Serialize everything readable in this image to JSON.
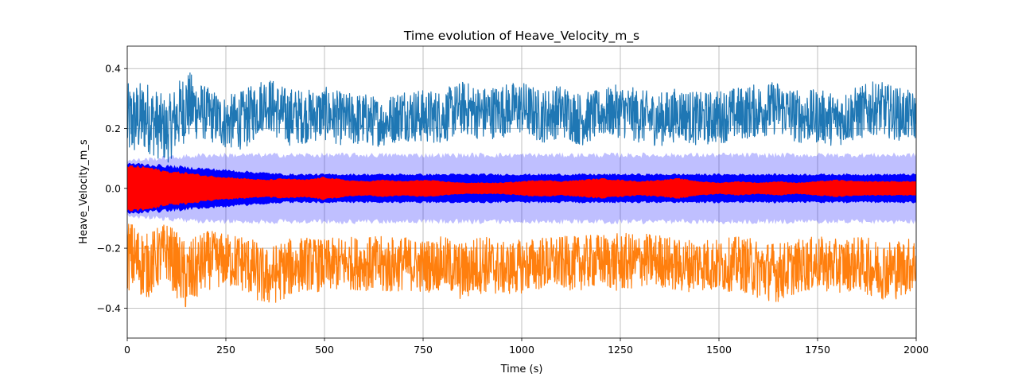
{
  "chart_data": {
    "type": "line",
    "title": "Time evolution of Heave_Velocity_m_s",
    "xlabel": "Time (s)",
    "ylabel": "Heave_Velocity_m_s",
    "xlim": [
      0,
      2000
    ],
    "ylim": [
      -0.5,
      0.475
    ],
    "x_ticks": [
      0,
      250,
      500,
      750,
      1000,
      1250,
      1500,
      1750,
      2000
    ],
    "x_tick_labels": [
      "0",
      "250",
      "500",
      "750",
      "1000",
      "1250",
      "1500",
      "1750",
      "2000"
    ],
    "y_ticks": [
      -0.4,
      -0.2,
      0.0,
      0.2,
      0.4
    ],
    "y_tick_labels": [
      "−0.4",
      "−0.2",
      "0.0",
      "0.2",
      "0.4"
    ],
    "grid": true,
    "legend": "none",
    "series": [
      {
        "kind": "line",
        "color": "#1f77b4",
        "x": [
          0,
          50,
          100,
          150,
          200,
          250,
          300,
          350,
          400,
          450,
          500,
          550,
          600,
          650,
          700,
          750,
          800,
          850,
          900,
          950,
          1000,
          1050,
          1100,
          1150,
          1200,
          1250,
          1300,
          1350,
          1400,
          1450,
          1500,
          1550,
          1600,
          1650,
          1700,
          1750,
          1800,
          1850,
          1900,
          1950,
          2000
        ],
        "center": [
          0.22,
          0.24,
          0.19,
          0.28,
          0.25,
          0.22,
          0.23,
          0.29,
          0.24,
          0.24,
          0.25,
          0.23,
          0.23,
          0.22,
          0.25,
          0.24,
          0.24,
          0.27,
          0.25,
          0.26,
          0.27,
          0.24,
          0.26,
          0.23,
          0.25,
          0.26,
          0.24,
          0.23,
          0.25,
          0.23,
          0.24,
          0.25,
          0.26,
          0.27,
          0.24,
          0.24,
          0.23,
          0.25,
          0.27,
          0.25,
          0.24
        ],
        "amplitude": [
          0.13,
          0.12,
          0.11,
          0.12,
          0.09,
          0.09,
          0.1,
          0.09,
          0.1,
          0.09,
          0.09,
          0.09,
          0.09,
          0.08,
          0.09,
          0.09,
          0.09,
          0.09,
          0.09,
          0.09,
          0.09,
          0.09,
          0.09,
          0.09,
          0.08,
          0.09,
          0.09,
          0.09,
          0.09,
          0.09,
          0.09,
          0.09,
          0.09,
          0.09,
          0.09,
          0.09,
          0.09,
          0.09,
          0.09,
          0.09,
          0.08
        ]
      },
      {
        "kind": "line",
        "color": "#ff7f0e",
        "x": [
          0,
          50,
          100,
          150,
          200,
          250,
          300,
          350,
          400,
          450,
          500,
          550,
          600,
          650,
          700,
          750,
          800,
          850,
          900,
          950,
          1000,
          1050,
          1100,
          1150,
          1200,
          1250,
          1300,
          1350,
          1400,
          1450,
          1500,
          1550,
          1600,
          1650,
          1700,
          1750,
          1800,
          1850,
          1900,
          1950,
          2000
        ],
        "center": [
          -0.22,
          -0.26,
          -0.21,
          -0.3,
          -0.24,
          -0.24,
          -0.25,
          -0.3,
          -0.27,
          -0.25,
          -0.26,
          -0.25,
          -0.25,
          -0.26,
          -0.25,
          -0.26,
          -0.25,
          -0.28,
          -0.25,
          -0.27,
          -0.26,
          -0.25,
          -0.25,
          -0.25,
          -0.24,
          -0.25,
          -0.24,
          -0.24,
          -0.26,
          -0.25,
          -0.26,
          -0.25,
          -0.27,
          -0.28,
          -0.26,
          -0.25,
          -0.26,
          -0.25,
          -0.27,
          -0.27,
          -0.25
        ],
        "amplitude": [
          0.12,
          0.11,
          0.1,
          0.12,
          0.1,
          0.09,
          0.1,
          0.1,
          0.1,
          0.09,
          0.09,
          0.09,
          0.09,
          0.1,
          0.09,
          0.09,
          0.09,
          0.1,
          0.1,
          0.09,
          0.09,
          0.09,
          0.09,
          0.09,
          0.09,
          0.1,
          0.09,
          0.09,
          0.09,
          0.09,
          0.09,
          0.09,
          0.1,
          0.1,
          0.09,
          0.09,
          0.09,
          0.09,
          0.1,
          0.1,
          0.09
        ]
      },
      {
        "kind": "band",
        "color": "#0000ff",
        "opacity": 0.25,
        "x": [
          0,
          100,
          200,
          300,
          400,
          500,
          600,
          700,
          800,
          900,
          1000,
          1100,
          1200,
          1300,
          1400,
          1500,
          1600,
          1700,
          1800,
          1900,
          2000
        ],
        "center": [
          0.0,
          0.0,
          0.0,
          0.0,
          0.0,
          0.0,
          0.0,
          0.0,
          0.0,
          0.0,
          0.0,
          0.0,
          0.0,
          0.0,
          0.0,
          0.0,
          0.0,
          0.0,
          0.0,
          0.0,
          0.0
        ],
        "amplitude": [
          0.1,
          0.11,
          0.12,
          0.12,
          0.12,
          0.12,
          0.12,
          0.12,
          0.12,
          0.12,
          0.12,
          0.12,
          0.12,
          0.12,
          0.12,
          0.12,
          0.12,
          0.12,
          0.12,
          0.12,
          0.12
        ]
      },
      {
        "kind": "band",
        "color": "#0000ff",
        "opacity": 1,
        "x": [
          0,
          100,
          200,
          300,
          400,
          500,
          600,
          700,
          800,
          900,
          1000,
          1100,
          1200,
          1300,
          1400,
          1500,
          1600,
          1700,
          1800,
          1900,
          2000
        ],
        "center": [
          0.0,
          0.0,
          0.0,
          0.0,
          0.0,
          0.0,
          0.0,
          0.0,
          0.0,
          0.0,
          0.0,
          0.0,
          0.0,
          0.0,
          0.0,
          0.0,
          0.0,
          0.0,
          0.0,
          0.0,
          0.0
        ],
        "amplitude": [
          0.09,
          0.08,
          0.07,
          0.06,
          0.05,
          0.05,
          0.05,
          0.05,
          0.05,
          0.05,
          0.05,
          0.05,
          0.05,
          0.05,
          0.05,
          0.05,
          0.05,
          0.05,
          0.05,
          0.05,
          0.05
        ]
      },
      {
        "kind": "band",
        "color": "#ff0000",
        "opacity": 1,
        "x": [
          0,
          50,
          100,
          150,
          200,
          250,
          300,
          350,
          400,
          450,
          500,
          550,
          600,
          650,
          700,
          750,
          800,
          850,
          900,
          950,
          1000,
          1050,
          1100,
          1150,
          1200,
          1250,
          1300,
          1350,
          1400,
          1450,
          1500,
          1550,
          1600,
          1650,
          1700,
          1750,
          1800,
          1850,
          1900,
          1950,
          2000
        ],
        "center": [
          0.0,
          0.0,
          0.0,
          0.0,
          0.0,
          0.0,
          0.0,
          0.0,
          0.0,
          0.0,
          0.0,
          0.0,
          0.0,
          0.0,
          0.0,
          0.0,
          0.0,
          0.0,
          0.0,
          0.0,
          0.0,
          0.0,
          0.0,
          0.0,
          0.0,
          0.0,
          0.0,
          0.0,
          0.0,
          0.0,
          0.0,
          0.0,
          0.0,
          0.0,
          0.0,
          0.0,
          0.0,
          0.0,
          0.0,
          0.0,
          0.0
        ],
        "amplitude": [
          0.08,
          0.075,
          0.06,
          0.055,
          0.045,
          0.04,
          0.035,
          0.03,
          0.035,
          0.03,
          0.04,
          0.03,
          0.025,
          0.03,
          0.025,
          0.03,
          0.025,
          0.02,
          0.02,
          0.02,
          0.025,
          0.03,
          0.025,
          0.03,
          0.035,
          0.03,
          0.025,
          0.03,
          0.035,
          0.025,
          0.02,
          0.025,
          0.02,
          0.025,
          0.02,
          0.025,
          0.03,
          0.025,
          0.025,
          0.025,
          0.025
        ]
      }
    ]
  }
}
